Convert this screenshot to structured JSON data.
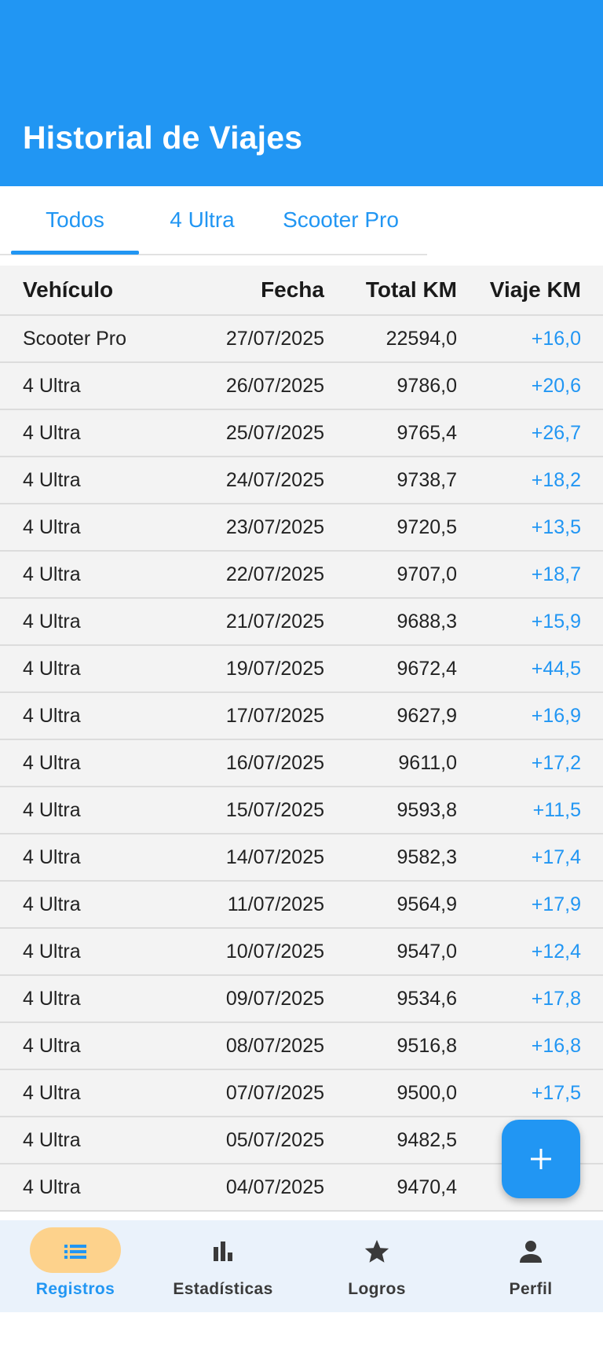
{
  "appbar": {
    "title": "Historial de Viajes"
  },
  "tabs": [
    {
      "label": "Todos",
      "selected": true
    },
    {
      "label": "4 Ultra",
      "selected": false
    },
    {
      "label": "Scooter Pro",
      "selected": false
    }
  ],
  "table": {
    "headers": {
      "vehiculo": "Vehículo",
      "fecha": "Fecha",
      "total": "Total KM",
      "viaje": "Viaje KM"
    },
    "rows": [
      {
        "vehiculo": "Scooter Pro",
        "fecha": "27/07/2025",
        "total": "22594,0",
        "viaje": "+16,0"
      },
      {
        "vehiculo": "4 Ultra",
        "fecha": "26/07/2025",
        "total": "9786,0",
        "viaje": "+20,6"
      },
      {
        "vehiculo": "4 Ultra",
        "fecha": "25/07/2025",
        "total": "9765,4",
        "viaje": "+26,7"
      },
      {
        "vehiculo": "4 Ultra",
        "fecha": "24/07/2025",
        "total": "9738,7",
        "viaje": "+18,2"
      },
      {
        "vehiculo": "4 Ultra",
        "fecha": "23/07/2025",
        "total": "9720,5",
        "viaje": "+13,5"
      },
      {
        "vehiculo": "4 Ultra",
        "fecha": "22/07/2025",
        "total": "9707,0",
        "viaje": "+18,7"
      },
      {
        "vehiculo": "4 Ultra",
        "fecha": "21/07/2025",
        "total": "9688,3",
        "viaje": "+15,9"
      },
      {
        "vehiculo": "4 Ultra",
        "fecha": "19/07/2025",
        "total": "9672,4",
        "viaje": "+44,5"
      },
      {
        "vehiculo": "4 Ultra",
        "fecha": "17/07/2025",
        "total": "9627,9",
        "viaje": "+16,9"
      },
      {
        "vehiculo": "4 Ultra",
        "fecha": "16/07/2025",
        "total": "9611,0",
        "viaje": "+17,2"
      },
      {
        "vehiculo": "4 Ultra",
        "fecha": "15/07/2025",
        "total": "9593,8",
        "viaje": "+11,5"
      },
      {
        "vehiculo": "4 Ultra",
        "fecha": "14/07/2025",
        "total": "9582,3",
        "viaje": "+17,4"
      },
      {
        "vehiculo": "4 Ultra",
        "fecha": "11/07/2025",
        "total": "9564,9",
        "viaje": "+17,9"
      },
      {
        "vehiculo": "4 Ultra",
        "fecha": "10/07/2025",
        "total": "9547,0",
        "viaje": "+12,4"
      },
      {
        "vehiculo": "4 Ultra",
        "fecha": "09/07/2025",
        "total": "9534,6",
        "viaje": "+17,8"
      },
      {
        "vehiculo": "4 Ultra",
        "fecha": "08/07/2025",
        "total": "9516,8",
        "viaje": "+16,8"
      },
      {
        "vehiculo": "4 Ultra",
        "fecha": "07/07/2025",
        "total": "9500,0",
        "viaje": "+17,5"
      },
      {
        "vehiculo": "4 Ultra",
        "fecha": "05/07/2025",
        "total": "9482,5",
        "viaje": ""
      },
      {
        "vehiculo": "4 Ultra",
        "fecha": "04/07/2025",
        "total": "9470,4",
        "viaje": ""
      }
    ]
  },
  "fab": {
    "icon": "plus-icon"
  },
  "bottom_nav": [
    {
      "label": "Registros",
      "icon": "list-icon",
      "active": true
    },
    {
      "label": "Estadísticas",
      "icon": "bar-chart-icon",
      "active": false
    },
    {
      "label": "Logros",
      "icon": "star-icon",
      "active": false
    },
    {
      "label": "Perfil",
      "icon": "person-icon",
      "active": false
    }
  ],
  "colors": {
    "primary": "#2196F3",
    "active_pill": "#fdd28c",
    "nav_bg": "#eaf2fb",
    "table_bg": "#f3f3f3"
  }
}
